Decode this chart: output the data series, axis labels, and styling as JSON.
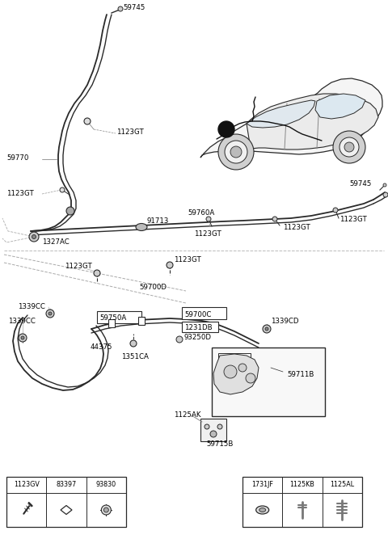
{
  "background_color": "#ffffff",
  "line_color": "#2a2a2a",
  "fig_width": 4.8,
  "fig_height": 6.62,
  "dpi": 100,
  "legend_left_codes": [
    "1123GV",
    "83397",
    "93830"
  ],
  "legend_right_codes": [
    "1731JF",
    "1125KB",
    "1125AL"
  ],
  "gray": "#888888",
  "lightgray": "#cccccc",
  "darkgray": "#555555"
}
